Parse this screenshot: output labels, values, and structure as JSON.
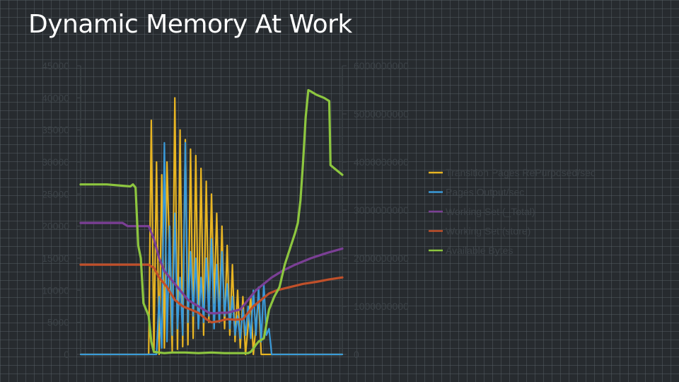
{
  "slide": {
    "title": "Dynamic Memory At Work"
  },
  "chart_data": {
    "type": "line",
    "left_axis": {
      "ylim": [
        0,
        45000
      ],
      "ticks": [
        "0",
        "5000",
        "10000",
        "15000",
        "20000",
        "25000",
        "30000",
        "35000",
        "40000",
        "45000"
      ]
    },
    "right_axis": {
      "ylim": [
        0,
        6000000000
      ],
      "ticks": [
        "0",
        "1000000000",
        "2000000000",
        "3000000000",
        "4000000000",
        "5000000000",
        "6000000000"
      ]
    },
    "x_range": [
      0,
      100
    ],
    "grid": false,
    "legend_position": "right",
    "series": [
      {
        "name": "Transition Pages RePurposed/sec",
        "color": "#e8b523",
        "axis": "left",
        "style": "spike",
        "points": [
          [
            0,
            0
          ],
          [
            26,
            0
          ],
          [
            27,
            36500
          ],
          [
            28,
            500
          ],
          [
            29,
            30000
          ],
          [
            30,
            0
          ],
          [
            31,
            28000
          ],
          [
            32,
            1000
          ],
          [
            33,
            30000
          ],
          [
            35,
            400
          ],
          [
            36,
            40000
          ],
          [
            37,
            800
          ],
          [
            38,
            35000
          ],
          [
            39,
            1200
          ],
          [
            40,
            33500
          ],
          [
            41,
            1500
          ],
          [
            42,
            32000
          ],
          [
            43,
            2500
          ],
          [
            44,
            31000
          ],
          [
            45,
            4000
          ],
          [
            46,
            29000
          ],
          [
            47,
            3000
          ],
          [
            48,
            27000
          ],
          [
            49,
            5000
          ],
          [
            50,
            25000
          ],
          [
            51,
            8000
          ],
          [
            52,
            22000
          ],
          [
            53,
            5000
          ],
          [
            54,
            20000
          ],
          [
            55,
            4000
          ],
          [
            56,
            17000
          ],
          [
            57,
            3000
          ],
          [
            58,
            14000
          ],
          [
            59,
            2000
          ],
          [
            60,
            10000
          ],
          [
            61,
            1000
          ],
          [
            62,
            9000
          ],
          [
            63,
            0
          ],
          [
            65,
            9000
          ],
          [
            66,
            0
          ],
          [
            68,
            9000
          ],
          [
            69,
            0
          ],
          [
            72,
            0
          ],
          [
            100,
            0
          ]
        ]
      },
      {
        "name": "Pages Output/sec",
        "color": "#3a9ad9",
        "axis": "left",
        "style": "spike",
        "points": [
          [
            0,
            0
          ],
          [
            29,
            0
          ],
          [
            30,
            9000
          ],
          [
            31,
            1000
          ],
          [
            32,
            33000
          ],
          [
            33,
            2000
          ],
          [
            34,
            20000
          ],
          [
            35,
            3000
          ],
          [
            36,
            22000
          ],
          [
            37,
            4000
          ],
          [
            38,
            12000
          ],
          [
            39,
            3000
          ],
          [
            40,
            33000
          ],
          [
            41,
            5000
          ],
          [
            42,
            16000
          ],
          [
            43,
            6000
          ],
          [
            44,
            15000
          ],
          [
            45,
            4000
          ],
          [
            46,
            12000
          ],
          [
            47,
            5000
          ],
          [
            48,
            15000
          ],
          [
            49,
            6000
          ],
          [
            50,
            18000
          ],
          [
            51,
            4000
          ],
          [
            52,
            14000
          ],
          [
            53,
            5000
          ],
          [
            54,
            16000
          ],
          [
            55,
            6000
          ],
          [
            56,
            11000
          ],
          [
            57,
            4000
          ],
          [
            58,
            9000
          ],
          [
            59,
            3000
          ],
          [
            60,
            6000
          ],
          [
            61,
            2500
          ],
          [
            62,
            7000
          ],
          [
            63,
            3000
          ],
          [
            64,
            7500
          ],
          [
            65,
            2500
          ],
          [
            66,
            10000
          ],
          [
            67,
            3000
          ],
          [
            68,
            10500
          ],
          [
            69,
            2000
          ],
          [
            70,
            11000
          ],
          [
            71,
            3000
          ],
          [
            72,
            4000
          ],
          [
            73,
            0
          ],
          [
            100,
            0
          ]
        ]
      },
      {
        "name": "Working Set (_Total)",
        "color": "#7b3f95",
        "axis": "left",
        "style": "line",
        "points": [
          [
            0,
            20500
          ],
          [
            16,
            20500
          ],
          [
            18,
            20000
          ],
          [
            24,
            20000
          ],
          [
            26,
            20000
          ],
          [
            28,
            18000
          ],
          [
            30,
            15000
          ],
          [
            32,
            13000
          ],
          [
            35,
            11500
          ],
          [
            37,
            10500
          ],
          [
            39,
            9500
          ],
          [
            41,
            8500
          ],
          [
            43,
            8000
          ],
          [
            45,
            7500
          ],
          [
            47,
            7000
          ],
          [
            49,
            6500
          ],
          [
            51,
            6400
          ],
          [
            53,
            6500
          ],
          [
            56,
            6500
          ],
          [
            59,
            6800
          ],
          [
            61,
            7000
          ],
          [
            63,
            8000
          ],
          [
            65,
            9000
          ],
          [
            67,
            10000
          ],
          [
            70,
            11000
          ],
          [
            73,
            12000
          ],
          [
            77,
            13000
          ],
          [
            82,
            14000
          ],
          [
            88,
            15000
          ],
          [
            94,
            15800
          ],
          [
            100,
            16500
          ]
        ]
      },
      {
        "name": "Working Set (store)",
        "color": "#c0502a",
        "axis": "left",
        "style": "line",
        "points": [
          [
            0,
            14000
          ],
          [
            24,
            14000
          ],
          [
            26,
            14000
          ],
          [
            28,
            13500
          ],
          [
            30,
            12000
          ],
          [
            33,
            10500
          ],
          [
            36,
            8500
          ],
          [
            39,
            7500
          ],
          [
            42,
            7000
          ],
          [
            45,
            6500
          ],
          [
            48,
            5500
          ],
          [
            50,
            5000
          ],
          [
            53,
            5200
          ],
          [
            56,
            5500
          ],
          [
            59,
            5400
          ],
          [
            62,
            5500
          ],
          [
            64,
            6500
          ],
          [
            66,
            7500
          ],
          [
            69,
            8500
          ],
          [
            72,
            9500
          ],
          [
            75,
            10000
          ],
          [
            80,
            10500
          ],
          [
            85,
            11000
          ],
          [
            90,
            11300
          ],
          [
            95,
            11700
          ],
          [
            100,
            12000
          ]
        ]
      },
      {
        "name": "Available Bytes",
        "color": "#8dc63f",
        "axis": "left",
        "style": "line",
        "points": [
          [
            0,
            26500
          ],
          [
            10,
            26500
          ],
          [
            19,
            26200
          ],
          [
            20,
            26500
          ],
          [
            21,
            26000
          ],
          [
            22,
            17000
          ],
          [
            23,
            15000
          ],
          [
            24,
            8000
          ],
          [
            25,
            7000
          ],
          [
            26,
            6000
          ],
          [
            27,
            2000
          ],
          [
            28,
            400
          ],
          [
            30,
            300
          ],
          [
            32,
            200
          ],
          [
            35,
            300
          ],
          [
            40,
            300
          ],
          [
            45,
            200
          ],
          [
            50,
            300
          ],
          [
            55,
            200
          ],
          [
            60,
            200
          ],
          [
            64,
            200
          ],
          [
            65,
            400
          ],
          [
            66,
            900
          ],
          [
            67,
            1500
          ],
          [
            68,
            2000
          ],
          [
            70,
            2500
          ],
          [
            72,
            7000
          ],
          [
            74,
            9000
          ],
          [
            76,
            10500
          ],
          [
            78,
            14000
          ],
          [
            80,
            16500
          ],
          [
            82,
            19000
          ],
          [
            83,
            20500
          ],
          [
            84,
            24000
          ],
          [
            85,
            30000
          ],
          [
            86,
            37000
          ],
          [
            87,
            41200
          ],
          [
            88,
            41000
          ],
          [
            90,
            40500
          ],
          [
            93,
            40000
          ],
          [
            95,
            39500
          ],
          [
            95.5,
            29500
          ],
          [
            97,
            29000
          ],
          [
            100,
            28000
          ]
        ]
      }
    ]
  }
}
